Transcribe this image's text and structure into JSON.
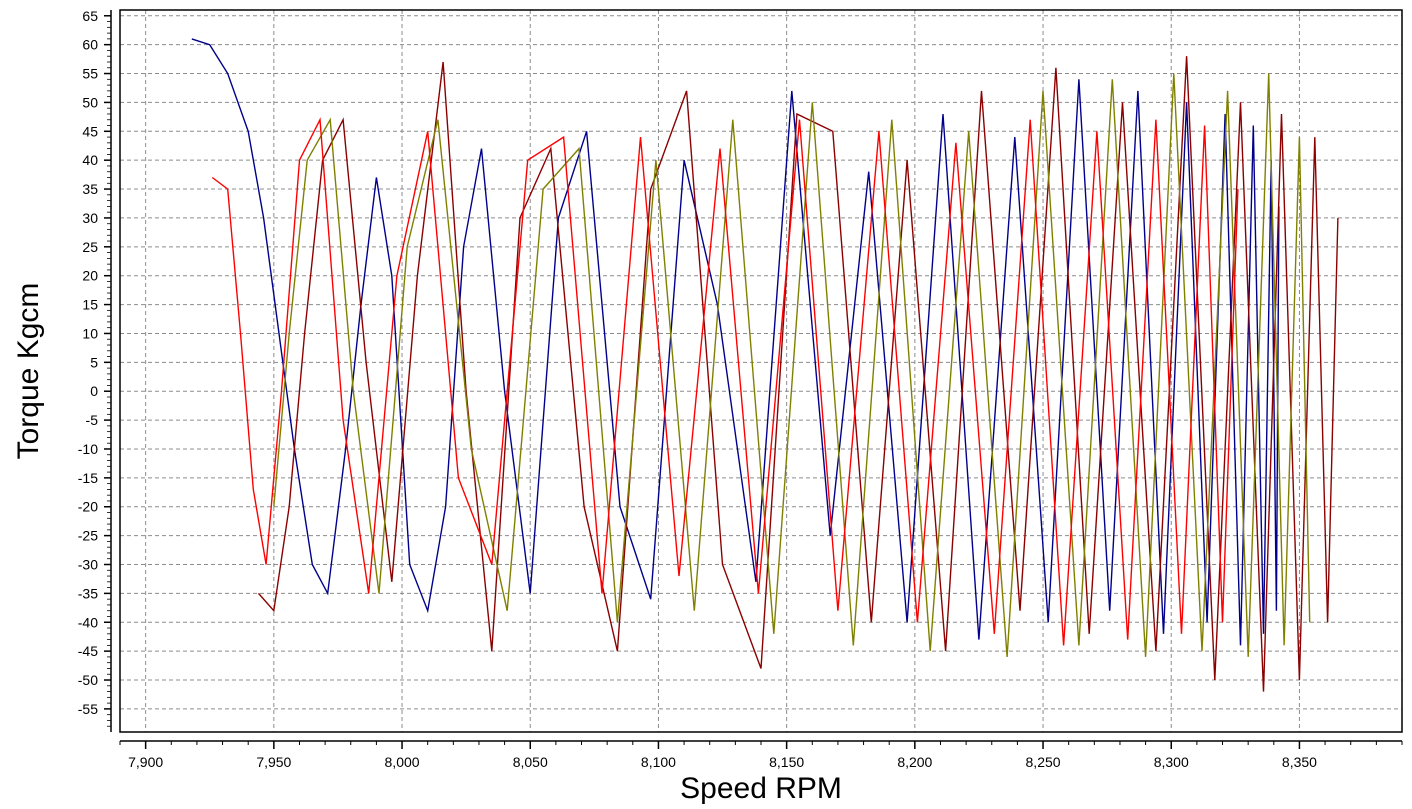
{
  "chart_data": {
    "type": "line",
    "title": "",
    "xlabel": "Speed RPM",
    "ylabel": "Torque Kgcm",
    "xlim": [
      7890,
      8390
    ],
    "ylim": [
      -59,
      66
    ],
    "x_ticks": [
      7900,
      7950,
      8000,
      8050,
      8100,
      8150,
      8200,
      8250,
      8300,
      8350
    ],
    "x_tick_labels": [
      "7,900",
      "7,950",
      "8,000",
      "8,050",
      "8,100",
      "8,150",
      "8,200",
      "8,250",
      "8,300",
      "8,350"
    ],
    "y_ticks": [
      65,
      60,
      55,
      50,
      45,
      40,
      35,
      30,
      25,
      20,
      15,
      10,
      5,
      0,
      -5,
      -10,
      -15,
      -20,
      -25,
      -30,
      -35,
      -40,
      -45,
      -50,
      -55
    ],
    "y_tick_labels": [
      "65",
      "60",
      "55",
      "50",
      "45",
      "40",
      "35",
      "30",
      "25",
      "20",
      "15",
      "10",
      "5",
      "0",
      "-5",
      "-10",
      "-15",
      "-20",
      "-25",
      "-30",
      "-35",
      "-40",
      "-45",
      "-50",
      "-55"
    ],
    "grid": true,
    "legend": "none",
    "series": [
      {
        "color": "#00008b",
        "x": [
          7918,
          7925,
          7932,
          7940,
          7946,
          7952,
          7958,
          7965,
          7971,
          7978,
          7984,
          7990,
          7996,
          8003,
          8010,
          8017,
          8024,
          8031,
          8040,
          8050,
          8061,
          8072,
          8085,
          8097,
          8110,
          8123,
          8138,
          8152,
          8167,
          8182,
          8197,
          8211,
          8225,
          8239,
          8252,
          8264,
          8276,
          8287,
          8297,
          8306,
          8314,
          8321,
          8327,
          8332,
          8336,
          8339,
          8341,
          8342
        ],
        "y": [
          61,
          60,
          55,
          45,
          30,
          10,
          -10,
          -30,
          -35,
          -10,
          15,
          37,
          20,
          -30,
          -38,
          -20,
          25,
          42,
          0,
          -35,
          30,
          45,
          -20,
          -36,
          40,
          15,
          -33,
          52,
          -25,
          38,
          -40,
          48,
          -43,
          44,
          -40,
          54,
          -38,
          52,
          -42,
          50,
          -40,
          48,
          -44,
          46,
          -42,
          40,
          -38,
          32
        ]
      },
      {
        "color": "#8b0000",
        "x": [
          7944,
          7950,
          7956,
          7962,
          7969,
          7977,
          7986,
          7996,
          8006,
          8016,
          8025,
          8035,
          8046,
          8058,
          8071,
          8084,
          8097,
          8111,
          8125,
          8140,
          8154,
          8168,
          8183,
          8197,
          8212,
          8226,
          8241,
          8255,
          8268,
          8281,
          8294,
          8306,
          8317,
          8327,
          8336,
          8343,
          8350,
          8356,
          8361,
          8365
        ],
        "y": [
          -35,
          -38,
          -20,
          10,
          40,
          47,
          5,
          -33,
          20,
          57,
          0,
          -45,
          30,
          42,
          -20,
          -45,
          35,
          52,
          -30,
          -48,
          48,
          45,
          -40,
          40,
          -45,
          52,
          -38,
          56,
          -42,
          50,
          -45,
          58,
          -50,
          50,
          -52,
          48,
          -50,
          44,
          -40,
          30
        ]
      },
      {
        "color": "#808000",
        "x": [
          7950,
          7956,
          7963,
          7972,
          7981,
          7991,
          8002,
          8014,
          8027,
          8041,
          8055,
          8069,
          8084,
          8099,
          8114,
          8129,
          8145,
          8160,
          8176,
          8191,
          8206,
          8221,
          8236,
          8250,
          8264,
          8277,
          8290,
          8301,
          8312,
          8322,
          8330,
          8338,
          8344,
          8350,
          8354
        ],
        "y": [
          -20,
          10,
          40,
          47,
          0,
          -35,
          25,
          47,
          -10,
          -38,
          35,
          42,
          -40,
          40,
          -38,
          47,
          -42,
          50,
          -44,
          47,
          -45,
          45,
          -46,
          52,
          -44,
          54,
          -46,
          55,
          -45,
          52,
          -46,
          55,
          -44,
          44,
          -40
        ]
      },
      {
        "color": "#ff0000",
        "x": [
          7926,
          7932,
          7937,
          7942,
          7947,
          7953,
          7960,
          7968,
          7977,
          7987,
          7998,
          8010,
          8022,
          8035,
          8049,
          8063,
          8078,
          8093,
          8108,
          8124,
          8139,
          8155,
          8170,
          8186,
          8201,
          8216,
          8231,
          8245,
          8258,
          8271,
          8283,
          8294,
          8304,
          8313,
          8320,
          8326
        ],
        "y": [
          37,
          35,
          10,
          -17,
          -30,
          0,
          40,
          47,
          -5,
          -35,
          20,
          45,
          -15,
          -30,
          40,
          44,
          -35,
          44,
          -32,
          42,
          -35,
          47,
          -38,
          45,
          -40,
          43,
          -42,
          47,
          -44,
          45,
          -43,
          47,
          -42,
          46,
          -40,
          35
        ]
      }
    ]
  }
}
